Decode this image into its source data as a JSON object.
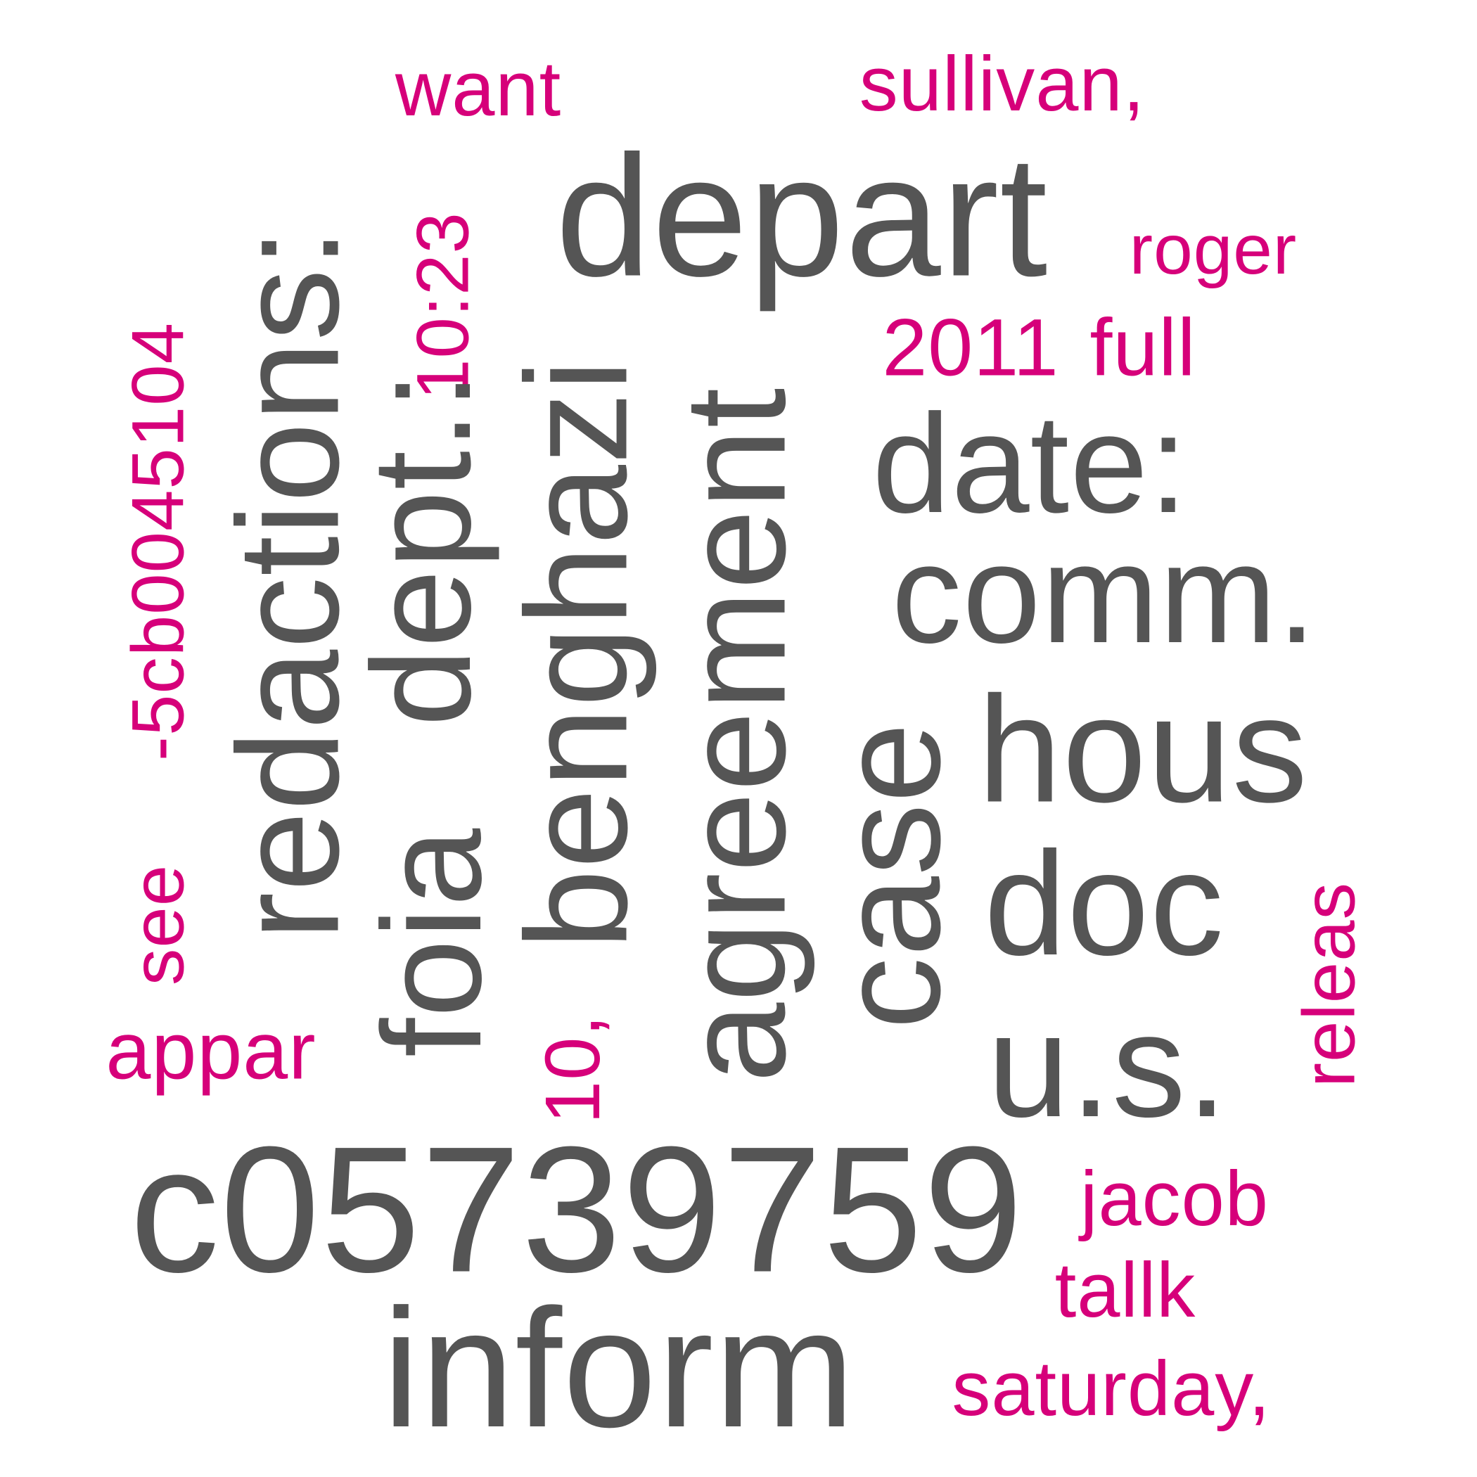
{
  "colors": {
    "primary": "#555555",
    "accent": "#d6007a",
    "background": "#ffffff"
  },
  "words": {
    "want": "want",
    "sullivan": "sullivan,",
    "depart": "depart",
    "roger": "roger",
    "redactions": "redactions:",
    "see": "see",
    "doc_code": "-5cb0045104",
    "time": "10:23",
    "dept": "dept.:",
    "foia": "foia",
    "benghazi": "benghazi",
    "ten": "10,",
    "agreement": "agreement",
    "year": "2011",
    "full": "full",
    "date": "date:",
    "comm": "comm.",
    "case": "case",
    "hous": "hous",
    "doc": "doc",
    "us": "u.s.",
    "releas": "releas",
    "appar": "appar",
    "doc_id": "c05739759",
    "jacob": "jacob",
    "tallk": "tallk",
    "inform": "inform",
    "saturday": "saturday,"
  }
}
